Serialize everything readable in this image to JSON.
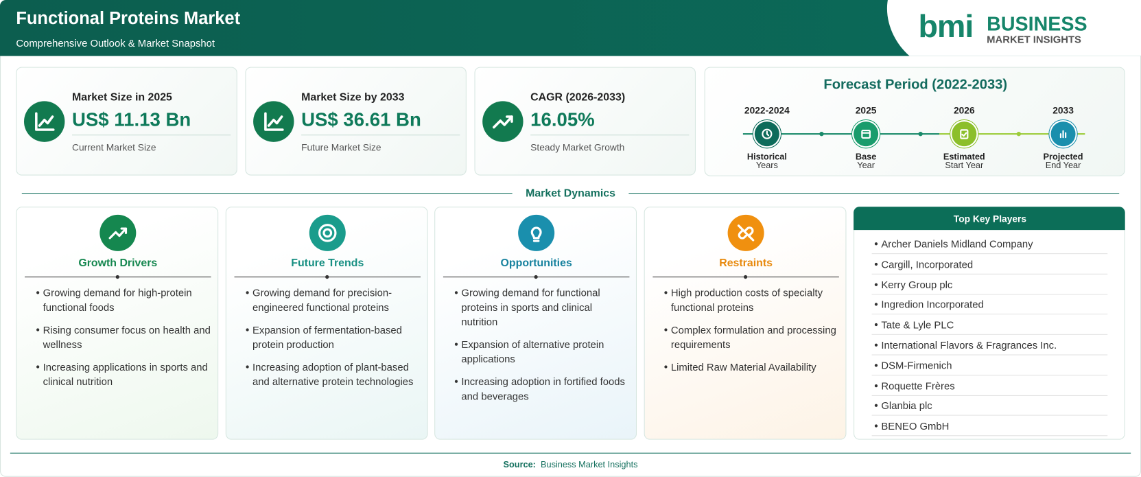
{
  "header": {
    "title": "Functional Proteins Market",
    "subtitle": "Comprehensive Outlook & Market Snapshot"
  },
  "logo": {
    "mark": "bmi",
    "line1": "BUSINESS",
    "line2": "MARKET INSIGHTS"
  },
  "metrics": [
    {
      "label": "Market Size in 2025",
      "value": "US$ 11.13 Bn",
      "note": "Current Market Size"
    },
    {
      "label": "Market Size by 2033",
      "value": "US$ 36.61 Bn",
      "note": "Future Market Size"
    },
    {
      "label": "CAGR (2026-2033)",
      "value": "16.05%",
      "note": "Steady Market Growth"
    }
  ],
  "forecast": {
    "title": "Forecast Period (2022-2033)",
    "stages": [
      {
        "years": "2022-2024",
        "label": "Historical",
        "sublabel": "Years"
      },
      {
        "years": "2025",
        "label": "Base",
        "sublabel": "Year"
      },
      {
        "years": "2026",
        "label": "Estimated",
        "sublabel": "Start Year"
      },
      {
        "years": "2033",
        "label": "Projected",
        "sublabel": "End Year"
      }
    ]
  },
  "dynamics": {
    "title": "Market Dynamics",
    "sections": [
      {
        "title": "Growth Drivers",
        "items": [
          "Growing demand for high-protein functional foods",
          "Rising consumer focus on health and wellness",
          "Increasing applications in sports and clinical nutrition"
        ]
      },
      {
        "title": "Future Trends",
        "items": [
          "Growing demand for precision-engineered functional proteins",
          "Expansion of fermentation-based protein production",
          "Increasing adoption of plant-based and alternative protein technologies"
        ]
      },
      {
        "title": "Opportunities",
        "items": [
          "Growing demand for functional proteins in sports and clinical nutrition",
          "Expansion of alternative protein applications",
          "Increasing adoption in fortified foods and beverages"
        ]
      },
      {
        "title": "Restraints",
        "items": [
          "High production costs of specialty functional proteins",
          "Complex formulation and processing requirements",
          "Limited Raw Material Availability"
        ]
      }
    ]
  },
  "key_players": {
    "title": "Top Key Players",
    "items": [
      "Archer Daniels Midland Company",
      "Cargill, Incorporated",
      "Kerry Group plc",
      "Ingredion Incorporated",
      "Tate & Lyle PLC",
      "International Flavors & Fragrances Inc.",
      "DSM-Firmenich",
      "Roquette Frères",
      "Glanbia plc",
      "BENEO GmbH"
    ]
  },
  "source": {
    "label": "Source:",
    "text": "Business Market Insights"
  }
}
